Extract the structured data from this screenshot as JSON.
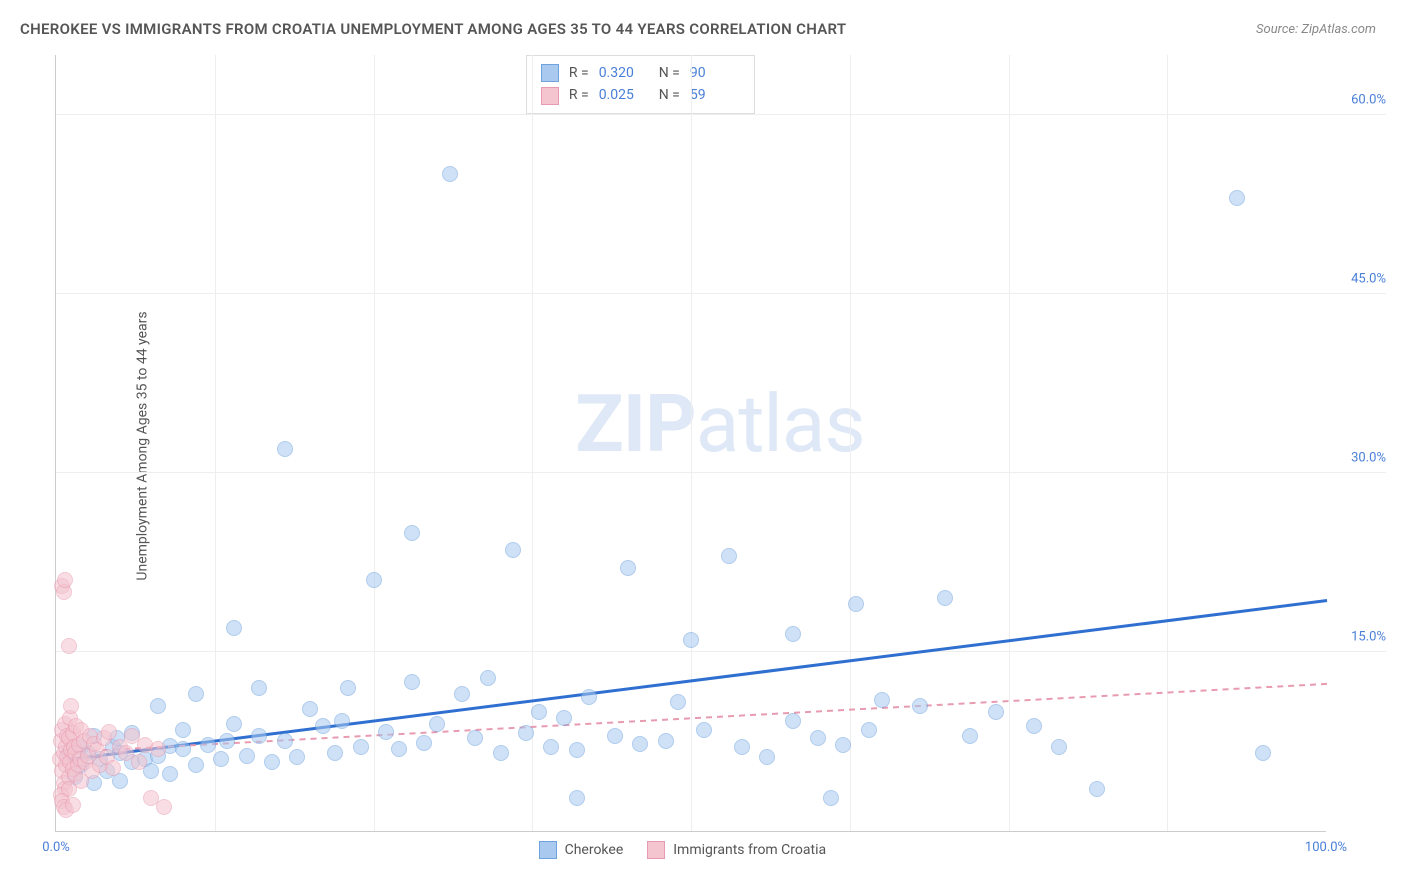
{
  "title": "CHEROKEE VS IMMIGRANTS FROM CROATIA UNEMPLOYMENT AMONG AGES 35 TO 44 YEARS CORRELATION CHART",
  "source": "Source: ZipAtlas.com",
  "y_axis_label": "Unemployment Among Ages 35 to 44 years",
  "watermark_bold": "ZIP",
  "watermark_rest": "atlas",
  "chart": {
    "type": "scatter",
    "background_color": "#ffffff",
    "grid_color": "#eeeeee",
    "axis_color": "#cccccc",
    "tick_label_color": "#4a7fd8",
    "tick_fontsize": 13,
    "title_fontsize": 15,
    "title_color": "#555555",
    "xlim": [
      0,
      100
    ],
    "ylim": [
      0,
      65
    ],
    "y_ticks": [
      15,
      30,
      45,
      60
    ],
    "y_tick_labels": [
      "15.0%",
      "30.0%",
      "45.0%",
      "60.0%"
    ],
    "x_ticks": [
      0,
      100
    ],
    "x_tick_labels": [
      "0.0%",
      "100.0%"
    ],
    "x_minor_grid": [
      12.5,
      25,
      37.5,
      50,
      62.5,
      75,
      87.5
    ],
    "marker_radius": 8,
    "marker_opacity": 0.55,
    "series": [
      {
        "name": "Cherokee",
        "fill_color": "#a9c9ef",
        "stroke_color": "#6fa3e0",
        "r_value": "0.320",
        "n_value": "90",
        "trend": {
          "x1": 1,
          "y1": 6.2,
          "x2": 100,
          "y2": 19.5,
          "color": "#2f6fd0",
          "width": 2.5,
          "dash": "solid"
        },
        "points": [
          [
            1,
            6.5
          ],
          [
            1.5,
            4.5
          ],
          [
            2,
            7
          ],
          [
            2,
            5.5
          ],
          [
            3,
            4
          ],
          [
            3,
            8
          ],
          [
            3.5,
            6
          ],
          [
            4,
            5
          ],
          [
            4.5,
            7
          ],
          [
            5,
            6.5
          ],
          [
            5,
            4.2
          ],
          [
            6,
            5.8
          ],
          [
            6,
            8.2
          ],
          [
            7,
            6.0
          ],
          [
            7.5,
            5.0
          ],
          [
            8,
            10.5
          ],
          [
            8,
            6.3
          ],
          [
            9,
            7.1
          ],
          [
            9,
            4.8
          ],
          [
            10,
            6.9
          ],
          [
            10,
            8.5
          ],
          [
            11,
            5.5
          ],
          [
            11,
            11.5
          ],
          [
            12,
            7.2
          ],
          [
            13,
            6.0
          ],
          [
            14,
            9.0
          ],
          [
            14,
            17.0
          ],
          [
            15,
            6.3
          ],
          [
            16,
            8.0
          ],
          [
            16,
            12.0
          ],
          [
            17,
            5.8
          ],
          [
            18,
            7.5
          ],
          [
            18,
            32.0
          ],
          [
            19,
            6.2
          ],
          [
            20,
            10.2
          ],
          [
            21,
            8.8
          ],
          [
            22,
            6.5
          ],
          [
            23,
            12.0
          ],
          [
            24,
            7.0
          ],
          [
            25,
            21.0
          ],
          [
            26,
            8.3
          ],
          [
            27,
            6.9
          ],
          [
            28,
            12.5
          ],
          [
            28,
            25.0
          ],
          [
            29,
            7.4
          ],
          [
            30,
            9.0
          ],
          [
            31,
            55.0
          ],
          [
            32,
            11.5
          ],
          [
            33,
            7.8
          ],
          [
            34,
            12.8
          ],
          [
            35,
            6.5
          ],
          [
            36,
            23.5
          ],
          [
            37,
            8.2
          ],
          [
            38,
            10.0
          ],
          [
            39,
            7.0
          ],
          [
            40,
            9.5
          ],
          [
            41,
            6.8
          ],
          [
            41,
            2.8
          ],
          [
            42,
            11.2
          ],
          [
            44,
            8.0
          ],
          [
            45,
            22.0
          ],
          [
            46,
            7.3
          ],
          [
            48,
            7.5
          ],
          [
            49,
            10.8
          ],
          [
            50,
            16.0
          ],
          [
            51,
            8.5
          ],
          [
            53,
            23.0
          ],
          [
            54,
            7.0
          ],
          [
            56,
            6.2
          ],
          [
            58,
            9.2
          ],
          [
            58,
            16.5
          ],
          [
            60,
            7.8
          ],
          [
            61,
            2.8
          ],
          [
            62,
            7.2
          ],
          [
            63,
            19.0
          ],
          [
            64,
            8.5
          ],
          [
            65,
            11.0
          ],
          [
            68,
            10.5
          ],
          [
            70,
            19.5
          ],
          [
            72,
            8.0
          ],
          [
            74,
            10.0
          ],
          [
            77,
            8.8
          ],
          [
            79,
            7.0
          ],
          [
            82,
            3.5
          ],
          [
            93,
            53.0
          ],
          [
            95,
            6.5
          ],
          [
            2.5,
            6.5
          ],
          [
            4.8,
            7.8
          ],
          [
            13.5,
            7.5
          ],
          [
            22.5,
            9.2
          ]
        ]
      },
      {
        "name": "Immigrants from Croatia",
        "fill_color": "#f4c4cf",
        "stroke_color": "#e89bb0",
        "r_value": "0.025",
        "n_value": "59",
        "trend": {
          "x1": 1,
          "y1": 6.8,
          "x2": 100,
          "y2": 12.5,
          "color": "#e89bb0",
          "width": 1.5,
          "dash": "dashed"
        },
        "points": [
          [
            0.3,
            6
          ],
          [
            0.4,
            7.5
          ],
          [
            0.5,
            5
          ],
          [
            0.5,
            8.5
          ],
          [
            0.6,
            4
          ],
          [
            0.6,
            6.5
          ],
          [
            0.7,
            9
          ],
          [
            0.7,
            3.5
          ],
          [
            0.8,
            7
          ],
          [
            0.8,
            5.5
          ],
          [
            0.9,
            8
          ],
          [
            0.9,
            6.2
          ],
          [
            1.0,
            4.5
          ],
          [
            1.0,
            7.8
          ],
          [
            1.1,
            5.8
          ],
          [
            1.1,
            9.5
          ],
          [
            1.2,
            6.8
          ],
          [
            1.3,
            5.2
          ],
          [
            1.3,
            8.2
          ],
          [
            1.4,
            7.0
          ],
          [
            1.5,
            4.8
          ],
          [
            1.5,
            6.5
          ],
          [
            1.6,
            8.8
          ],
          [
            1.7,
            5.5
          ],
          [
            1.8,
            7.2
          ],
          [
            1.9,
            6.0
          ],
          [
            2.0,
            4.2
          ],
          [
            2.0,
            8.5
          ],
          [
            2.2,
            7.5
          ],
          [
            2.3,
            5.8
          ],
          [
            2.5,
            6.3
          ],
          [
            2.7,
            8.0
          ],
          [
            2.8,
            5.0
          ],
          [
            3.0,
            7.3
          ],
          [
            3.2,
            6.8
          ],
          [
            3.5,
            5.5
          ],
          [
            3.8,
            7.8
          ],
          [
            4.0,
            6.2
          ],
          [
            4.2,
            8.3
          ],
          [
            4.5,
            5.3
          ],
          [
            5.0,
            7.0
          ],
          [
            5.5,
            6.5
          ],
          [
            6.0,
            8.0
          ],
          [
            6.5,
            5.8
          ],
          [
            7.0,
            7.2
          ],
          [
            7.5,
            2.8
          ],
          [
            8.0,
            6.9
          ],
          [
            8.5,
            2.0
          ],
          [
            0.5,
            20.5
          ],
          [
            0.6,
            20.0
          ],
          [
            0.7,
            21.0
          ],
          [
            1.0,
            15.5
          ],
          [
            1.2,
            10.5
          ],
          [
            0.4,
            3.0
          ],
          [
            0.5,
            2.5
          ],
          [
            0.6,
            2.0
          ],
          [
            0.8,
            1.8
          ],
          [
            1.0,
            3.5
          ],
          [
            1.3,
            2.2
          ]
        ]
      }
    ],
    "stats_legend": {
      "border_color": "#dddddd",
      "r_label": "R =",
      "n_label": "N ="
    },
    "bottom_legend": {
      "items": [
        "Cherokee",
        "Immigrants from Croatia"
      ]
    }
  }
}
